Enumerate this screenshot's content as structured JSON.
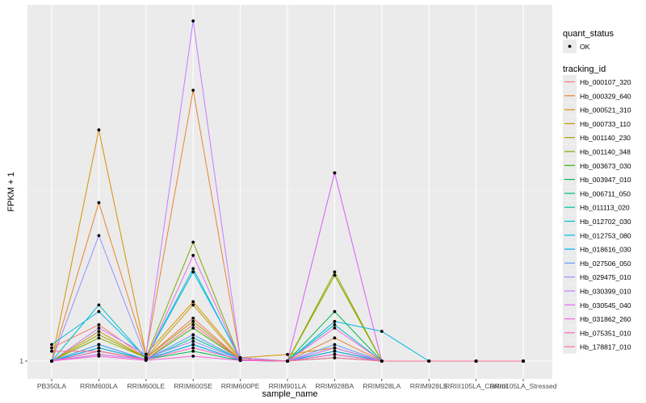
{
  "chart_data": {
    "type": "line",
    "xlabel": "sample_name",
    "ylabel": "FPKM + 1",
    "y_tick_labels": [
      "1"
    ],
    "ylim": [
      1,
      104
    ],
    "grid": true,
    "legend_position": "right",
    "categories": [
      "PB350LA",
      "RRIM600LA",
      "RRIM600LE",
      "RRIM600SE",
      "RRIM600PE",
      "RRIM901LA",
      "RRIM928BA",
      "RRIM928LA",
      "RRIM928LE",
      "RRIII105LA_Control",
      "RRIII105LA_Stressed"
    ],
    "legend": {
      "shape_title": "quant_status",
      "shape_entries": [
        "OK"
      ],
      "color_title": "tracking_id"
    },
    "series": [
      {
        "name": "Hb_000107_320",
        "color": "#F8766D",
        "values": [
          5.0,
          12,
          2,
          14,
          1.5,
          1,
          5,
          1,
          1,
          1,
          1
        ]
      },
      {
        "name": "Hb_000329_640",
        "color": "#EA8331",
        "values": [
          1.0,
          49,
          3,
          83,
          2,
          1,
          8,
          1,
          1,
          1,
          1
        ]
      },
      {
        "name": "Hb_000521_310",
        "color": "#D89000",
        "values": [
          1.0,
          71,
          3,
          19,
          2,
          3,
          5,
          1,
          1,
          1,
          1
        ]
      },
      {
        "name": "Hb_000733_110",
        "color": "#C09B00",
        "values": [
          1.0,
          10,
          2,
          18,
          1.5,
          1,
          27,
          1,
          1,
          1,
          1
        ]
      },
      {
        "name": "Hb_001140_230",
        "color": "#A3A500",
        "values": [
          1.0,
          9,
          2,
          13,
          1.5,
          1,
          28,
          1,
          1,
          1,
          1
        ]
      },
      {
        "name": "Hb_001140_348",
        "color": "#7CAE00",
        "values": [
          1.0,
          8,
          2,
          37,
          1.5,
          1,
          27,
          1,
          1,
          1,
          1
        ]
      },
      {
        "name": "Hb_003673_030",
        "color": "#39B600",
        "values": [
          1.0,
          5,
          1.5,
          11,
          1.5,
          1,
          4,
          1,
          1,
          1,
          1
        ]
      },
      {
        "name": "Hb_003947_010",
        "color": "#00BB4E",
        "values": [
          1.0,
          4,
          1.5,
          4,
          1.2,
          1,
          16,
          1,
          1,
          1,
          1
        ]
      },
      {
        "name": "Hb_006711_050",
        "color": "#00BF7D",
        "values": [
          1.0,
          3,
          1.5,
          6,
          1.2,
          1,
          2,
          1,
          1,
          1,
          1
        ]
      },
      {
        "name": "Hb_011113_020",
        "color": "#00C1A3",
        "values": [
          1.0,
          6,
          1.5,
          8,
          1.5,
          1,
          3,
          1,
          1,
          1,
          1
        ]
      },
      {
        "name": "Hb_012702_030",
        "color": "#00BFC4",
        "values": [
          1.0,
          18,
          2,
          29,
          1.5,
          1,
          12,
          1,
          1,
          1,
          1
        ]
      },
      {
        "name": "Hb_012753_080",
        "color": "#00B8E7",
        "values": [
          6.0,
          16,
          2,
          28,
          2,
          1,
          13,
          10,
          1,
          1,
          1
        ]
      },
      {
        "name": "Hb_018616_030",
        "color": "#00A9FF",
        "values": [
          1.0,
          5,
          1.5,
          6,
          1.2,
          1,
          4,
          1,
          1,
          1,
          1
        ]
      },
      {
        "name": "Hb_027506_050",
        "color": "#619CFF",
        "values": [
          1.0,
          6,
          1.5,
          9,
          1.5,
          1,
          6,
          1,
          1,
          1,
          1
        ]
      },
      {
        "name": "Hb_029475_010",
        "color": "#9590FF",
        "values": [
          1.0,
          39,
          2,
          7,
          1.5,
          1,
          58,
          1,
          1,
          1,
          1
        ]
      },
      {
        "name": "Hb_030399_010",
        "color": "#C77CFF",
        "values": [
          1.0,
          11,
          3,
          104,
          2,
          1,
          5,
          1,
          1,
          1,
          1
        ]
      },
      {
        "name": "Hb_030545_040",
        "color": "#E76BF3",
        "values": [
          1.0,
          3,
          1.5,
          33,
          1.5,
          1,
          58,
          1,
          1,
          1,
          1
        ]
      },
      {
        "name": "Hb_031862_260",
        "color": "#FA62DB",
        "values": [
          1.0,
          2.5,
          1.2,
          2.5,
          1.2,
          1,
          11,
          1,
          1,
          1,
          1
        ]
      },
      {
        "name": "Hb_075351_010",
        "color": "#FF62BC",
        "values": [
          1.0,
          4,
          1.5,
          5,
          1.5,
          1,
          3,
          1,
          1,
          1,
          1
        ]
      },
      {
        "name": "Hb_178817_010",
        "color": "#FF6C91",
        "values": [
          4.0,
          4,
          1.5,
          12,
          1.5,
          1,
          2,
          1,
          1,
          1,
          1
        ]
      }
    ]
  }
}
